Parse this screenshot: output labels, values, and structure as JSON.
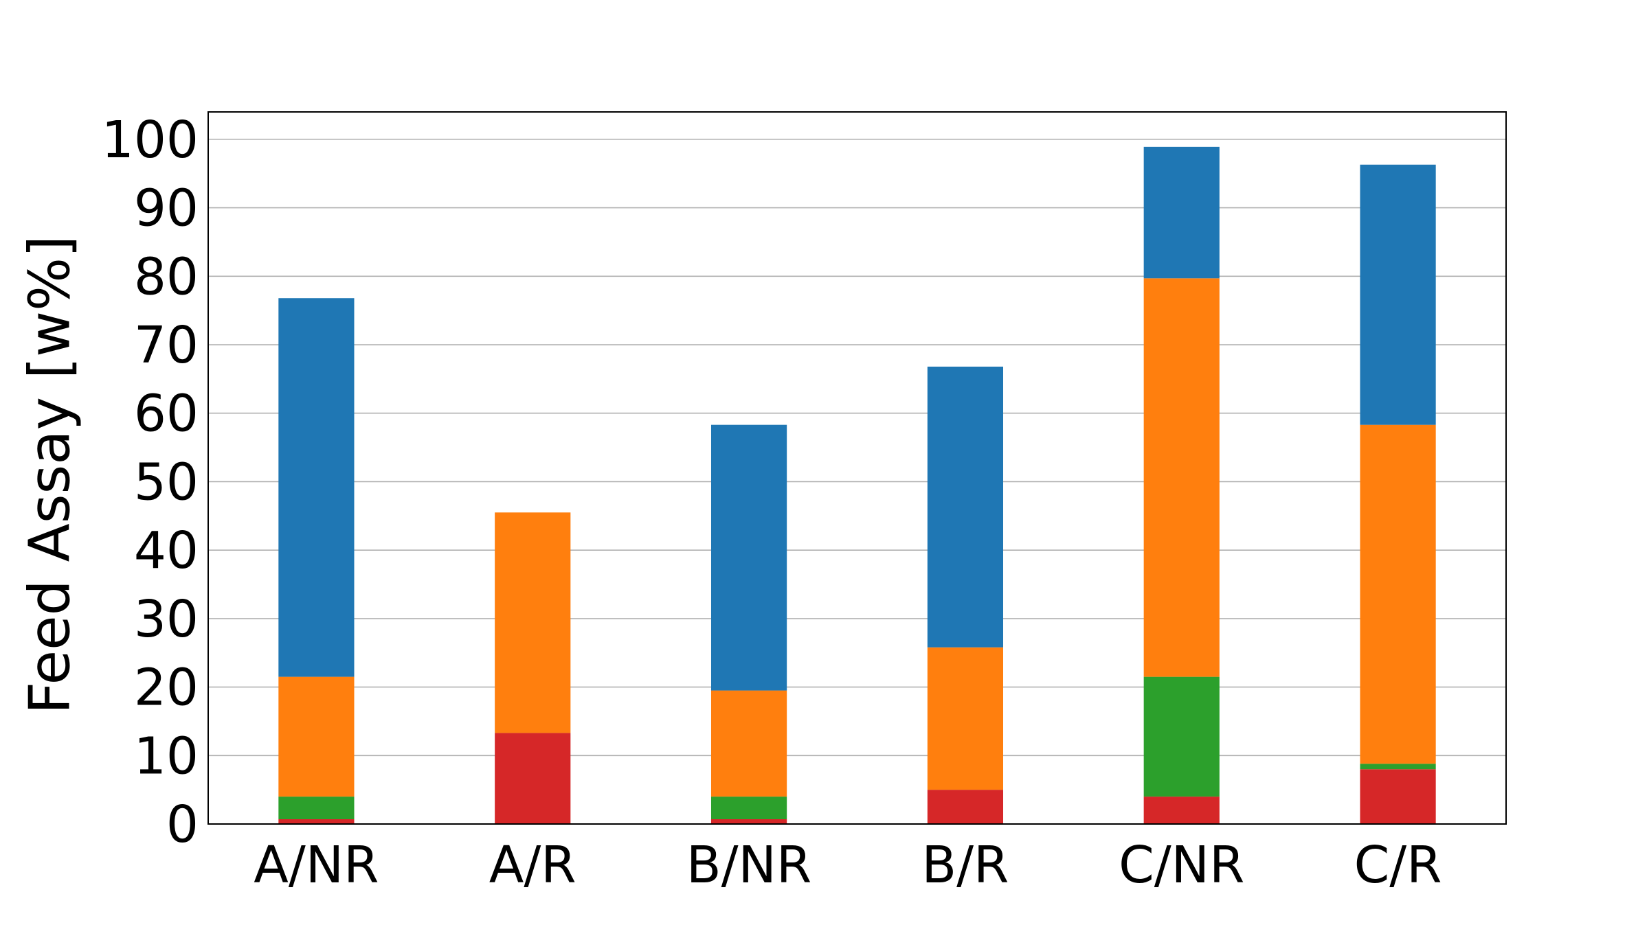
{
  "chart_data": {
    "type": "bar",
    "stacked": true,
    "categories": [
      "A/NR",
      "A/R",
      "B/NR",
      "B/R",
      "C/NR",
      "C/R"
    ],
    "series": [
      {
        "color": "#d62728",
        "values": [
          0.7,
          13.3,
          0.7,
          5.0,
          4.0,
          8.0
        ]
      },
      {
        "color": "#2ca02c",
        "values": [
          3.3,
          0.0,
          3.3,
          0.0,
          17.5,
          0.8
        ]
      },
      {
        "color": "#ff7f0e",
        "values": [
          17.5,
          32.2,
          15.5,
          20.8,
          58.2,
          49.5
        ]
      },
      {
        "color": "#1f77b4",
        "values": [
          55.3,
          0.0,
          38.8,
          41.0,
          19.2,
          38.0
        ]
      }
    ],
    "ylabel": "Feed Assay [w%]",
    "ylim": [
      0,
      104
    ],
    "yticks": [
      0,
      10,
      20,
      30,
      40,
      50,
      60,
      70,
      80,
      90,
      100
    ],
    "grid": "horizontal",
    "legend": false
  }
}
